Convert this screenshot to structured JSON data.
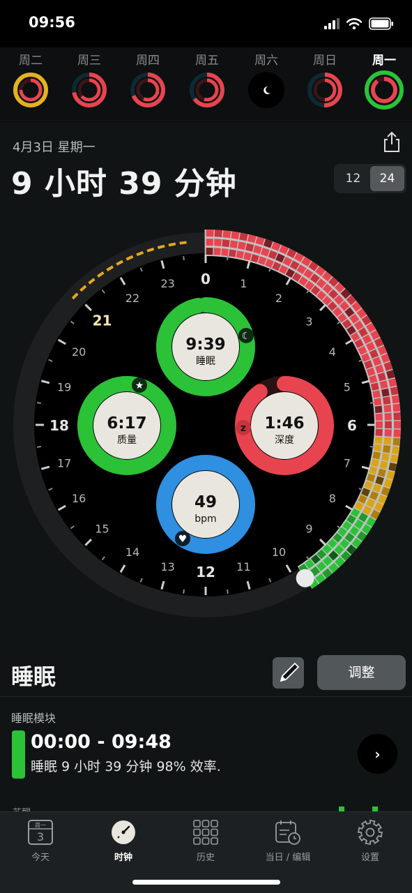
{
  "status_bar": {
    "time": "09:56"
  },
  "week": [
    {
      "label": "周二",
      "active": false
    },
    {
      "label": "周三",
      "active": false
    },
    {
      "label": "周四",
      "active": false
    },
    {
      "label": "周五",
      "active": false
    },
    {
      "label": "周六",
      "active": false
    },
    {
      "label": "周日",
      "active": false
    },
    {
      "label": "周一",
      "active": true
    }
  ],
  "summary": {
    "date": "4月3日 星期一",
    "duration": "9 小时 39 分钟",
    "format_12": "12",
    "format_24": "24",
    "selected_format": "24"
  },
  "clock": {
    "hour_labels": [
      "0",
      "1",
      "2",
      "3",
      "4",
      "5",
      "6",
      "7",
      "8",
      "9",
      "10",
      "11",
      "12",
      "13",
      "14",
      "15",
      "16",
      "17",
      "18",
      "19",
      "20",
      "21",
      "22",
      "23"
    ],
    "sleep_start": "00:00",
    "sleep_end": "09:48",
    "bedtime_goal_hour": "21",
    "gauges": {
      "sleep": {
        "value": "9:39",
        "label": "睡眠",
        "fraction": 0.97
      },
      "quality": {
        "value": "6:17",
        "label": "质量",
        "fraction": 1.0
      },
      "deep": {
        "value": "1:46",
        "label": "深度",
        "fraction": 0.9
      },
      "heart": {
        "value": "49",
        "label": "bpm",
        "fraction": 1.0
      }
    },
    "colors": {
      "sleep": "#2bc238",
      "quality": "#2bc238",
      "deep": "#e8444f",
      "heart": "#2f8fe0",
      "awake_dash": "#e3a81c",
      "amber": "#d9a317"
    }
  },
  "sleep_section": {
    "title": "睡眠",
    "adjust_label": "调整",
    "module_label": "睡眠模块",
    "module_time": "00:00 - 09:48",
    "module_desc": "睡眠 9 小时 39 分钟 98% 效率.",
    "peek_label": "苏醒"
  },
  "tabs": [
    {
      "label": "今天",
      "icon": "calendar-icon",
      "calendar_top": "周一",
      "calendar_day": "3",
      "active": false
    },
    {
      "label": "时钟",
      "icon": "clock-icon",
      "active": true
    },
    {
      "label": "历史",
      "icon": "grid-icon",
      "active": false
    },
    {
      "label": "当日 / 编辑",
      "icon": "calendar-edit-icon",
      "active": false
    },
    {
      "label": "设置",
      "icon": "gear-icon",
      "active": false
    }
  ]
}
